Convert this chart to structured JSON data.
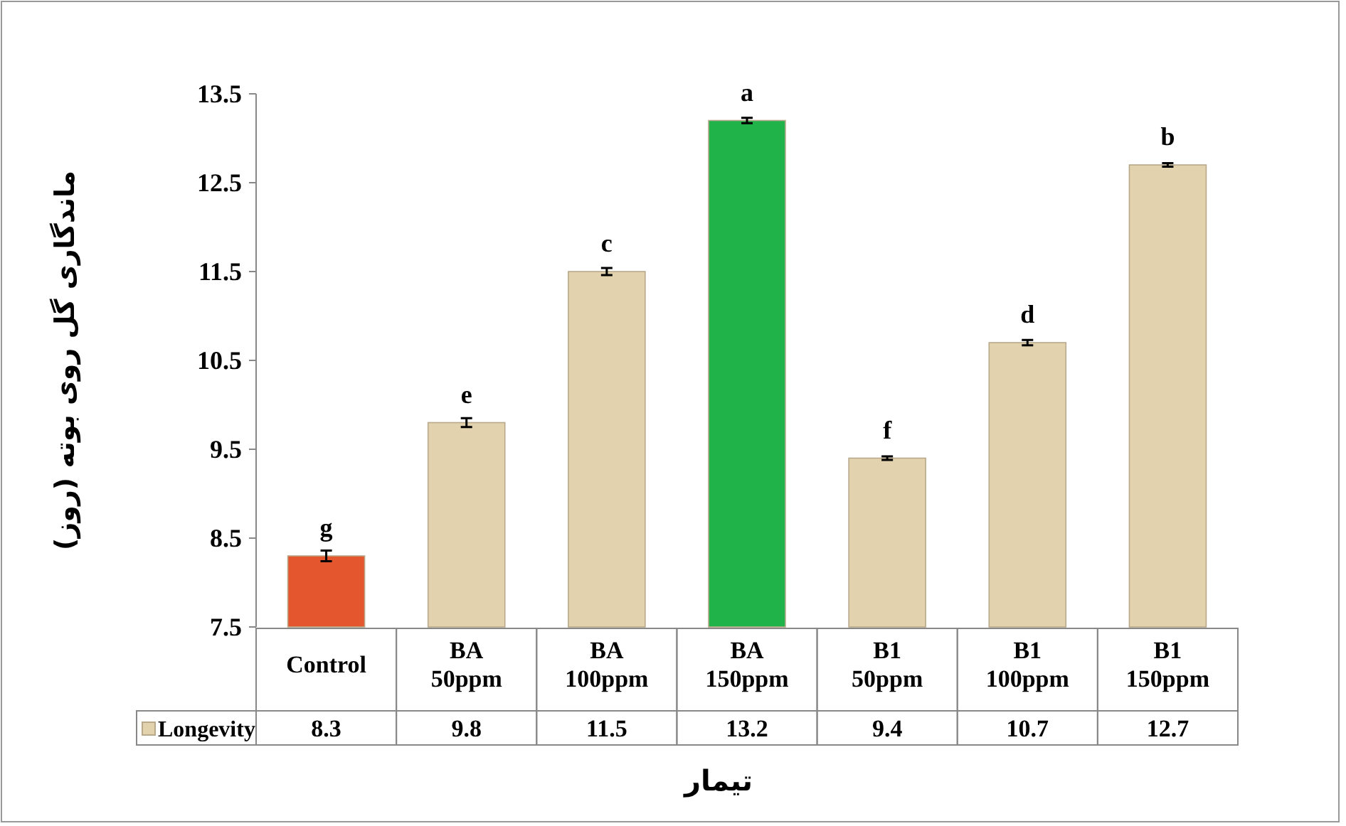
{
  "chart_data": {
    "type": "bar",
    "ylabel": "ماندگاری گل روی بوته (روز)",
    "xlabel": "تیمار",
    "categories": [
      "Control",
      "BA 50ppm",
      "BA 100ppm",
      "BA 150ppm",
      "B1 50ppm",
      "B1 100ppm",
      "B1 150ppm"
    ],
    "series": [
      {
        "name": "Longevity",
        "color": "#e2d2ad",
        "colors": [
          "#e4572e",
          "#e2d2ad",
          "#e2d2ad",
          "#1fb34a",
          "#e2d2ad",
          "#e2d2ad",
          "#e2d2ad"
        ],
        "values": [
          8.3,
          9.8,
          11.5,
          13.2,
          9.4,
          10.7,
          12.7
        ],
        "errors": [
          0.06,
          0.05,
          0.04,
          0.03,
          0.02,
          0.03,
          0.02
        ]
      }
    ],
    "ylim": [
      7.5,
      13.5
    ],
    "yticks": [
      7.5,
      8.5,
      9.5,
      10.5,
      11.5,
      12.5,
      13.5
    ],
    "data_labels": true,
    "annotations": [
      {
        "text": "g",
        "x": "Control",
        "y": 8.3
      },
      {
        "text": "e",
        "x": "BA 50ppm",
        "y": 9.8
      },
      {
        "text": "c",
        "x": "BA 100ppm",
        "y": 11.5
      },
      {
        "text": "a",
        "x": "BA 150ppm",
        "y": 13.2
      },
      {
        "text": "f",
        "x": "B1 50ppm",
        "y": 9.4
      },
      {
        "text": "d",
        "x": "B1 100ppm",
        "y": 10.7
      },
      {
        "text": "b",
        "x": "B1 150ppm",
        "y": 12.7
      }
    ]
  }
}
